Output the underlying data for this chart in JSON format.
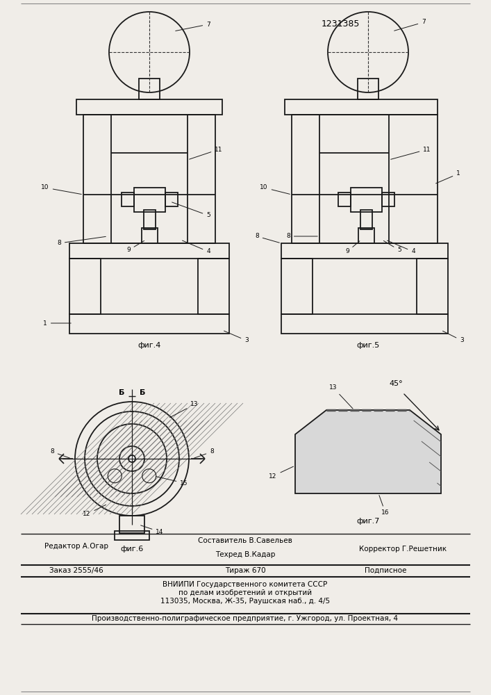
{
  "title": "1231385",
  "bg_color": "#f0ede8",
  "line_color": "#1a1a1a",
  "fig_labels": [
    "фиг.4",
    "фиг.5",
    "фиг.6",
    "фиг.7"
  ],
  "footer": {
    "row1_left": "Редактор А.Огар",
    "row1_center_top": "Составитель В.Савельев",
    "row1_center_bot": "Техред В.Кадар",
    "row1_right": "Корректор Г.Решетник",
    "row2_left": "Заказ 2555/46",
    "row2_center": "Тираж 670",
    "row2_right": "Подписное",
    "row3": "ВНИИПИ Государственного комитета СССР",
    "row4": "по делам изобретений и открытий",
    "row5": "113035, Москва, Ж-35, Раушская наб., д. 4/5",
    "row6": "Производственно-полиграфическое предприятие, г. Ужгород, ул. Проектная, 4"
  }
}
